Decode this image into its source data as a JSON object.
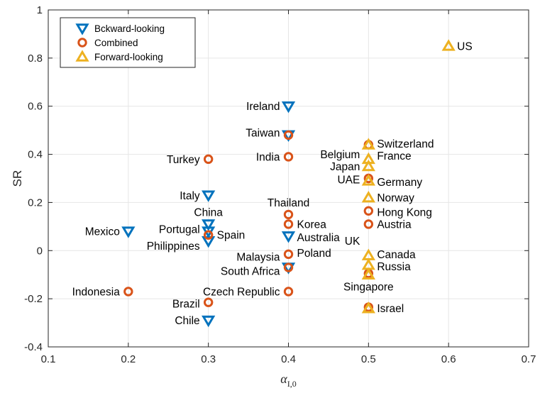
{
  "chart_data": {
    "type": "scatter",
    "title": "",
    "xlabel": "α",
    "xlabel_sub": "I,0",
    "ylabel": "SR",
    "xlim": [
      0.1,
      0.7
    ],
    "ylim": [
      -0.4,
      1.0
    ],
    "xticks": [
      0.1,
      0.2,
      0.3,
      0.4,
      0.5,
      0.6,
      0.7
    ],
    "yticks": [
      -0.4,
      -0.2,
      0,
      0.2,
      0.4,
      0.6,
      0.8,
      1
    ],
    "xtick_labels": [
      "0.1",
      "0.2",
      "0.3",
      "0.4",
      "0.5",
      "0.6",
      "0.7"
    ],
    "ytick_labels": [
      "-0.4",
      "-0.2",
      "0",
      "0.2",
      "0.4",
      "0.6",
      "0.8",
      "1"
    ],
    "grid": true,
    "legend_position": "top-left",
    "colors": {
      "backward": "#0072BD",
      "combined": "#D95319",
      "forward": "#EDB120"
    },
    "series": [
      {
        "name": "Bckward-looking",
        "marker": "triangle-down",
        "color": "#0072BD",
        "points": [
          {
            "x": 0.4,
            "y": 0.6
          },
          {
            "x": 0.4,
            "y": 0.48
          },
          {
            "x": 0.3,
            "y": 0.23
          },
          {
            "x": 0.3,
            "y": 0.11
          },
          {
            "x": 0.2,
            "y": 0.08
          },
          {
            "x": 0.3,
            "y": 0.08
          },
          {
            "x": 0.3,
            "y": 0.04
          },
          {
            "x": 0.4,
            "y": 0.06
          },
          {
            "x": 0.4,
            "y": -0.07
          },
          {
            "x": 0.3,
            "y": -0.29
          }
        ]
      },
      {
        "name": "Combined",
        "marker": "circle",
        "color": "#D95319",
        "points": [
          {
            "x": 0.3,
            "y": 0.38
          },
          {
            "x": 0.4,
            "y": 0.39
          },
          {
            "x": 0.4,
            "y": 0.48
          },
          {
            "x": 0.4,
            "y": 0.15
          },
          {
            "x": 0.4,
            "y": 0.11
          },
          {
            "x": 0.3,
            "y": 0.065
          },
          {
            "x": 0.4,
            "y": -0.015
          },
          {
            "x": 0.4,
            "y": -0.07
          },
          {
            "x": 0.2,
            "y": -0.17
          },
          {
            "x": 0.4,
            "y": -0.17
          },
          {
            "x": 0.3,
            "y": -0.215
          },
          {
            "x": 0.5,
            "y": 0.3
          },
          {
            "x": 0.5,
            "y": 0.165
          },
          {
            "x": 0.5,
            "y": 0.11
          },
          {
            "x": 0.5,
            "y": -0.095
          },
          {
            "x": 0.5,
            "y": -0.235
          },
          {
            "x": 0.5,
            "y": 0.44
          }
        ]
      },
      {
        "name": "Forward-looking",
        "marker": "triangle-up",
        "color": "#EDB120",
        "points": [
          {
            "x": 0.6,
            "y": 0.85
          },
          {
            "x": 0.5,
            "y": 0.44
          },
          {
            "x": 0.5,
            "y": 0.38
          },
          {
            "x": 0.5,
            "y": 0.35
          },
          {
            "x": 0.5,
            "y": 0.29
          },
          {
            "x": 0.5,
            "y": 0.22
          },
          {
            "x": 0.5,
            "y": -0.02
          },
          {
            "x": 0.5,
            "y": -0.06
          },
          {
            "x": 0.5,
            "y": -0.1
          },
          {
            "x": 0.5,
            "y": -0.24
          }
        ]
      }
    ],
    "annotations": [
      {
        "text": "US",
        "x": 0.6,
        "y": 0.85,
        "align": "left"
      },
      {
        "text": "Ireland",
        "x": 0.4,
        "y": 0.6,
        "align": "right"
      },
      {
        "text": "Taiwan",
        "x": 0.4,
        "y": 0.49,
        "align": "right"
      },
      {
        "text": "Switzerland",
        "x": 0.5,
        "y": 0.445,
        "align": "left"
      },
      {
        "text": "Turkey",
        "x": 0.3,
        "y": 0.38,
        "align": "right"
      },
      {
        "text": "India",
        "x": 0.4,
        "y": 0.39,
        "align": "right"
      },
      {
        "text": "Belgium",
        "x": 0.5,
        "y": 0.4,
        "align": "right"
      },
      {
        "text": "France",
        "x": 0.5,
        "y": 0.395,
        "align": "left"
      },
      {
        "text": "Japan",
        "x": 0.5,
        "y": 0.35,
        "align": "right"
      },
      {
        "text": "UAE",
        "x": 0.5,
        "y": 0.295,
        "align": "right"
      },
      {
        "text": "Germany",
        "x": 0.5,
        "y": 0.285,
        "align": "left"
      },
      {
        "text": "Italy",
        "x": 0.3,
        "y": 0.23,
        "align": "right"
      },
      {
        "text": "Thailand",
        "x": 0.4,
        "y": 0.2,
        "align": "center"
      },
      {
        "text": "Norway",
        "x": 0.5,
        "y": 0.22,
        "align": "left"
      },
      {
        "text": "China",
        "x": 0.3,
        "y": 0.16,
        "align": "center"
      },
      {
        "text": "Hong Kong",
        "x": 0.5,
        "y": 0.16,
        "align": "left"
      },
      {
        "text": "Korea",
        "x": 0.4,
        "y": 0.11,
        "align": "left"
      },
      {
        "text": "Austria",
        "x": 0.5,
        "y": 0.11,
        "align": "left"
      },
      {
        "text": "Mexico",
        "x": 0.2,
        "y": 0.08,
        "align": "right"
      },
      {
        "text": "Portugal",
        "x": 0.3,
        "y": 0.09,
        "align": "right"
      },
      {
        "text": "Spain",
        "x": 0.3,
        "y": 0.065,
        "align": "left"
      },
      {
        "text": "Australia",
        "x": 0.4,
        "y": 0.055,
        "align": "left"
      },
      {
        "text": "UK",
        "x": 0.5,
        "y": 0.04,
        "align": "right"
      },
      {
        "text": "Philippines",
        "x": 0.3,
        "y": 0.02,
        "align": "right"
      },
      {
        "text": "Malaysia",
        "x": 0.4,
        "y": -0.025,
        "align": "right"
      },
      {
        "text": "Poland",
        "x": 0.4,
        "y": -0.01,
        "align": "left"
      },
      {
        "text": "Canada",
        "x": 0.5,
        "y": -0.015,
        "align": "left"
      },
      {
        "text": "South Africa",
        "x": 0.4,
        "y": -0.085,
        "align": "right"
      },
      {
        "text": "Russia",
        "x": 0.5,
        "y": -0.065,
        "align": "left"
      },
      {
        "text": "Singapore",
        "x": 0.5,
        "y": -0.15,
        "align": "center"
      },
      {
        "text": "Indonesia",
        "x": 0.2,
        "y": -0.17,
        "align": "right"
      },
      {
        "text": "Czech Republic",
        "x": 0.4,
        "y": -0.17,
        "align": "right"
      },
      {
        "text": "Brazil",
        "x": 0.3,
        "y": -0.22,
        "align": "right"
      },
      {
        "text": "Israel",
        "x": 0.5,
        "y": -0.24,
        "align": "left"
      },
      {
        "text": "Chile",
        "x": 0.3,
        "y": -0.29,
        "align": "right"
      }
    ]
  }
}
